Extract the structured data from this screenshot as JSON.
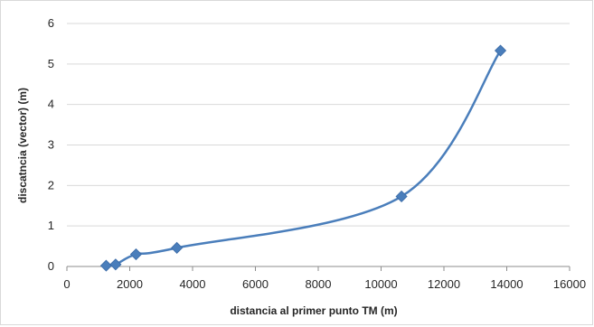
{
  "chart_data": {
    "type": "line",
    "title": "",
    "xlabel": "distancia al primer punto TM        (m)",
    "ylabel": "discatncia (vector)         (m)",
    "xlim": [
      0,
      16000
    ],
    "ylim": [
      0,
      6
    ],
    "x_ticks": [
      "0",
      "2000",
      "4000",
      "6000",
      "8000",
      "10000",
      "12000",
      "14000",
      "16000"
    ],
    "y_ticks": [
      "0",
      "1",
      "2",
      "3",
      "4",
      "5",
      "6"
    ],
    "grid": "horizontal",
    "smooth": true,
    "legend": "none",
    "series": [
      {
        "color": "#4a7ebb",
        "marker": "diamond",
        "points": [
          {
            "x": 1250,
            "y": 0.02
          },
          {
            "x": 1550,
            "y": 0.05
          },
          {
            "x": 2200,
            "y": 0.3
          },
          {
            "x": 3500,
            "y": 0.46
          },
          {
            "x": 10650,
            "y": 1.73
          },
          {
            "x": 13800,
            "y": 5.33
          }
        ]
      }
    ]
  }
}
